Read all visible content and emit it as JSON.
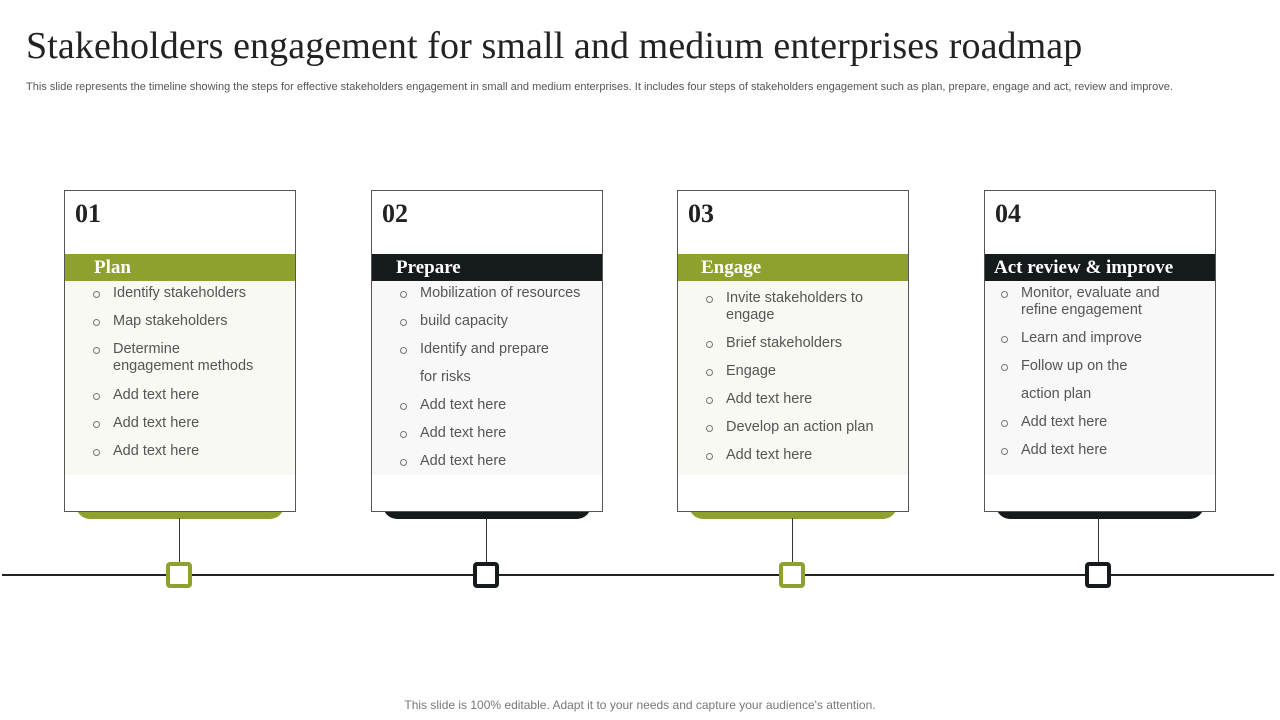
{
  "title": "Stakeholders engagement for small and medium enterprises roadmap",
  "subtitle": "This slide represents the timeline showing the steps for effective stakeholders engagement in small and medium enterprises. It includes four steps of stakeholders engagement such as plan, prepare, engage and act, review and improve.",
  "colors": {
    "green": "#8ea12e",
    "black": "#151a1c",
    "green_tint": "#f8f9f2",
    "grey_tint": "#f8f8f8"
  },
  "steps": [
    {
      "number": "01",
      "heading": "Plan",
      "accent": "green",
      "items": [
        "Identify stakeholders",
        "Map stakeholders",
        "Determine engagement methods",
        "Add text here",
        "Add text here",
        "Add text here"
      ]
    },
    {
      "number": "02",
      "heading": "Prepare",
      "accent": "black",
      "items": [
        "Mobilization of resources",
        "build capacity",
        "Identify and prepare",
        "for risks",
        "Add text here",
        "Add text here",
        "Add text here"
      ]
    },
    {
      "number": "03",
      "heading": "Engage",
      "accent": "green",
      "items": [
        "Invite stakeholders to engage",
        "Brief stakeholders",
        "Engage",
        "Add text here",
        "Develop an action plan",
        "Add text here"
      ]
    },
    {
      "number": "04",
      "heading": "Act review & improve",
      "accent": "black",
      "items": [
        "Monitor, evaluate and refine engagement",
        "Learn and improve",
        "Follow up on the",
        "action plan",
        "Add text here",
        "Add text here"
      ]
    }
  ],
  "footer": "This slide is 100% editable. Adapt it to your needs and capture your audience's attention."
}
